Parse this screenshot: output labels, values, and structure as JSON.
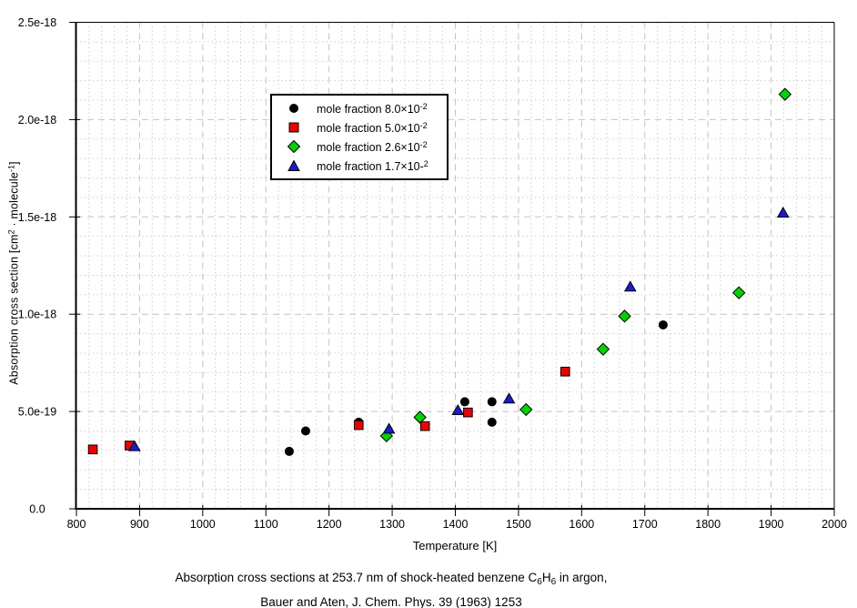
{
  "figure": {
    "caption": {
      "line1_a": "Absorption cross sections at 253.7 nm of shock-heated benzene C",
      "line1_sub1": "6",
      "line1_b": "H",
      "line1_sub2": "6",
      "line1_c": " in argon,",
      "line2": "Bauer and Aten, J. Chem. Phys. 39 (1963) 1253"
    }
  },
  "axes": {
    "x": {
      "label": "Temperature [K]",
      "min": 800,
      "max": 2000,
      "major_step": 100,
      "minor_step": 20,
      "tick_labels": [
        "800",
        "900",
        "1000",
        "1100",
        "1200",
        "1300",
        "1400",
        "1500",
        "1600",
        "1700",
        "1800",
        "1900",
        "2000"
      ]
    },
    "y": {
      "label_p1": "Absorption cross section [cm",
      "label_sup1": "2",
      "label_p2": " · molecule",
      "label_sup2": "-1",
      "label_p3": "]",
      "min": 0,
      "max": 2.5e-18,
      "major_step": 5e-19,
      "minor_step": 1e-19,
      "tick_labels": [
        "0.0",
        "5.0e-19",
        "1.0e-18",
        "1.5e-18",
        "2.0e-18",
        "2.5e-18"
      ]
    }
  },
  "legend": {
    "items": [
      {
        "marker": "circle",
        "color": "#000000",
        "label_prefix": "mole fraction 8.0×10",
        "label_sup": "-2"
      },
      {
        "marker": "square",
        "color": "#ee0000",
        "label_prefix": "mole fraction 5.0×10",
        "label_sup": "-2"
      },
      {
        "marker": "diamond",
        "color": "#00d400",
        "label_prefix": "mole fraction 2.6×10",
        "label_sup": "-2"
      },
      {
        "marker": "triangle",
        "color": "#1b1bd4",
        "label_prefix": "mole fraction 1.7×10-",
        "label_sup": "2"
      }
    ]
  },
  "chart_data": {
    "type": "scatter",
    "title": "",
    "xlabel": "Temperature [K]",
    "ylabel": "Absorption cross section [cm2 · molecule-1]",
    "xlim": [
      800,
      2000
    ],
    "ylim": [
      0,
      2.5e-18
    ],
    "grid": "major-dashed-and-minor-dotted",
    "legend_position": "upper-left-inside",
    "draw_order": [
      0,
      2,
      1,
      3
    ],
    "series": [
      {
        "name": "mole fraction 8.0×10-2",
        "marker": "circle",
        "color": "#000000",
        "points": [
          [
            1137,
            2.95e-19
          ],
          [
            1163,
            4e-19
          ],
          [
            1247,
            4.45e-19
          ],
          [
            1415,
            5.5e-19
          ],
          [
            1458,
            5.5e-19
          ],
          [
            1458,
            4.45e-19
          ],
          [
            1729,
            9.45e-19
          ]
        ]
      },
      {
        "name": "mole fraction 5.0×10-2",
        "marker": "square",
        "color": "#ee0000",
        "points": [
          [
            826,
            3.05e-19
          ],
          [
            884,
            3.25e-19
          ],
          [
            1247,
            4.3e-19
          ],
          [
            1352,
            4.25e-19
          ],
          [
            1420,
            4.95e-19
          ],
          [
            1574,
            7.05e-19
          ]
        ]
      },
      {
        "name": "mole fraction 2.6×10-2",
        "marker": "diamond",
        "color": "#00d400",
        "points": [
          [
            1291,
            3.75e-19
          ],
          [
            1344,
            4.7e-19
          ],
          [
            1512,
            5.1e-19
          ],
          [
            1634,
            8.2e-19
          ],
          [
            1668,
            9.9e-19
          ],
          [
            1849,
            1.11e-18
          ],
          [
            1922,
            2.13e-18
          ]
        ]
      },
      {
        "name": "mole fraction 1.7×10-2",
        "marker": "triangle",
        "color": "#1b1bd4",
        "points": [
          [
            892,
            3.2e-19
          ],
          [
            1295,
            4.1e-19
          ],
          [
            1404,
            5.05e-19
          ],
          [
            1485,
            5.65e-19
          ],
          [
            1677,
            1.14e-18
          ],
          [
            1919,
            1.52e-18
          ]
        ]
      }
    ]
  }
}
